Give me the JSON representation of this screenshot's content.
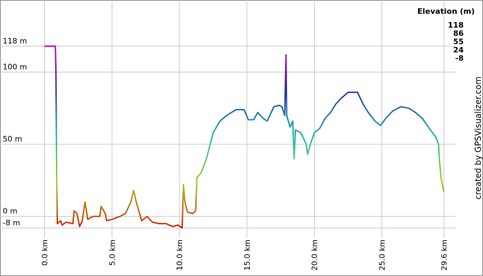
{
  "chart_data": {
    "type": "line",
    "x": [
      0,
      0.8,
      0.85,
      0.9,
      0.95,
      1.2,
      1.3,
      1.6,
      2.1,
      2.2,
      2.4,
      2.6,
      2.8,
      3.0,
      3.2,
      3.6,
      4.1,
      4.2,
      4.5,
      4.6,
      5.0,
      5.6,
      6.0,
      6.4,
      6.6,
      6.8,
      7.2,
      7.6,
      8.0,
      8.5,
      9.0,
      9.5,
      9.9,
      10.2,
      10.3,
      10.4,
      10.6,
      11.0,
      11.2,
      11.3,
      11.6,
      12.0,
      12.5,
      13.0,
      13.5,
      14.2,
      14.8,
      15.1,
      15.5,
      15.8,
      16.2,
      16.5,
      17.0,
      17.4,
      17.6,
      17.8,
      17.9,
      17.95,
      18.2,
      18.4,
      18.5,
      18.6,
      19.0,
      19.4,
      19.5,
      19.7,
      20.0,
      20.4,
      20.8,
      21.2,
      21.6,
      22.0,
      22.5,
      23.2,
      23.6,
      24.0,
      24.5,
      24.9,
      25.3,
      25.8,
      26.4,
      27.0,
      27.5,
      28.0,
      28.6,
      29.0,
      29.2,
      29.3,
      29.4,
      29.6
    ],
    "values": [
      118,
      118,
      100,
      28,
      -5,
      -3,
      -6,
      -4,
      -5,
      4,
      2,
      -7,
      -3,
      10,
      -2,
      0,
      0,
      7,
      2,
      -3,
      -2,
      0,
      2,
      10,
      18,
      10,
      -3,
      0,
      -4,
      -5,
      -5,
      -7,
      -6,
      -8,
      22,
      10,
      3,
      2,
      4,
      27,
      30,
      40,
      58,
      66,
      70,
      74,
      74,
      67,
      67,
      72,
      68,
      66,
      76,
      77,
      76,
      70,
      112,
      70,
      62,
      66,
      40,
      60,
      58,
      50,
      43,
      50,
      58,
      61,
      68,
      72,
      78,
      82,
      86,
      86,
      78,
      72,
      66,
      63,
      68,
      73,
      76,
      75,
      72,
      68,
      60,
      55,
      50,
      36,
      26,
      17
    ],
    "xlim": [
      -3.3,
      32.5
    ],
    "ylim": [
      -15,
      150
    ],
    "xticks": [
      {
        "value": 0,
        "label": "0.0 km"
      },
      {
        "value": 5,
        "label": "5.0 km"
      },
      {
        "value": 10,
        "label": "10.0 km"
      },
      {
        "value": 15,
        "label": "15.0 km"
      },
      {
        "value": 20,
        "label": "20.0 km"
      },
      {
        "value": 25,
        "label": "25.0 km"
      },
      {
        "value": 29.6,
        "label": "29.6 km"
      }
    ],
    "yticks": [
      {
        "value": -8,
        "label": "-8 m"
      },
      {
        "value": 0,
        "label": "0 m"
      },
      {
        "value": 50,
        "label": "50 m"
      },
      {
        "value": 100,
        "label": "100 m"
      },
      {
        "value": 118,
        "label": "118 m"
      }
    ],
    "grid": true,
    "legend": {
      "title": "Elevation (m)",
      "entries": [
        {
          "value": 118,
          "color": "#cc00aa"
        },
        {
          "value": 86,
          "color": "#2233aa"
        },
        {
          "value": 55,
          "color": "#22bbaa"
        },
        {
          "value": 24,
          "color": "#aacc22"
        },
        {
          "value": -8,
          "color": "#cc2200"
        }
      ]
    },
    "credit": "created by GPSVisualizer.com"
  }
}
